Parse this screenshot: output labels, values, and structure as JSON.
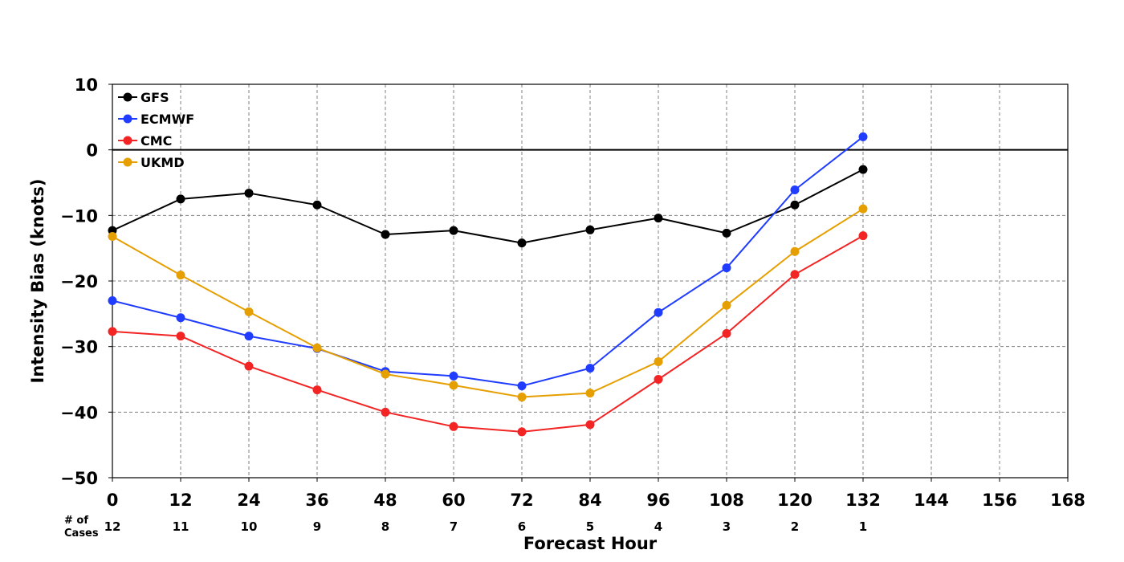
{
  "chart_data": {
    "type": "line",
    "xlabel": "Forecast Hour",
    "ylabel": "Intensity Bias (knots)",
    "xlim": [
      0,
      168
    ],
    "ylim": [
      -50,
      10
    ],
    "x_ticks": [
      0,
      12,
      24,
      36,
      48,
      60,
      72,
      84,
      96,
      108,
      120,
      132,
      144,
      156,
      168
    ],
    "x_tick_labels": [
      "0",
      "12",
      "24",
      "36",
      "48",
      "60",
      "72",
      "84",
      "96",
      "108",
      "120",
      "132",
      "144",
      "156",
      "168"
    ],
    "y_ticks": [
      10,
      0,
      -10,
      -20,
      -30,
      -40,
      -50
    ],
    "y_tick_labels": [
      "10",
      "0",
      "−10",
      "−20",
      "−30",
      "−40",
      "−50"
    ],
    "grid": true,
    "zero_line": true,
    "legend_position": "top-left",
    "cases_header": [
      "# of",
      "Cases"
    ],
    "cases": {
      "x": [
        0,
        12,
        24,
        36,
        48,
        60,
        72,
        84,
        96,
        108,
        120,
        132
      ],
      "labels": [
        "12",
        "11",
        "10",
        "9",
        "8",
        "7",
        "6",
        "5",
        "4",
        "3",
        "2",
        "1"
      ]
    },
    "x": [
      0,
      12,
      24,
      36,
      48,
      60,
      72,
      84,
      96,
      108,
      120,
      132
    ],
    "series": [
      {
        "name": "GFS",
        "color": "#000000",
        "values": [
          -12.3,
          -7.5,
          -6.6,
          -8.4,
          -12.9,
          -12.3,
          -14.2,
          -12.2,
          -10.4,
          -12.7,
          -8.4,
          -3.0
        ]
      },
      {
        "name": "ECMWF",
        "color": "#1f3cff",
        "values": [
          -23.0,
          -25.6,
          -28.4,
          -30.3,
          -33.8,
          -34.5,
          -36.0,
          -33.3,
          -24.8,
          -18.0,
          -6.1,
          2.0
        ]
      },
      {
        "name": "CMC",
        "color": "#f22424",
        "values": [
          -27.7,
          -28.4,
          -33.0,
          -36.6,
          -40.0,
          -42.2,
          -43.0,
          -41.9,
          -35.0,
          -28.0,
          -19.0,
          -13.1
        ]
      },
      {
        "name": "UKMD",
        "color": "#e69f00",
        "values": [
          -13.2,
          -19.1,
          -24.7,
          -30.2,
          -34.2,
          -35.9,
          -37.7,
          -37.1,
          -32.3,
          -23.7,
          -15.5,
          -9.0
        ]
      }
    ]
  }
}
